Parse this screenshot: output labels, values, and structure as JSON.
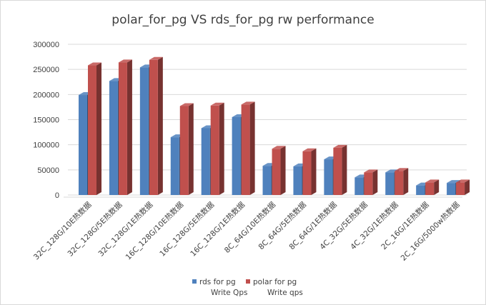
{
  "chart_data": {
    "type": "bar",
    "title": "polar_for_pg VS rds_for_pg rw performance",
    "xlabel": "",
    "ylabel": "",
    "ylim": [
      0,
      300000
    ],
    "yticks": [
      0,
      50000,
      100000,
      150000,
      200000,
      250000,
      300000
    ],
    "grid": true,
    "style": "3d-column",
    "legend_position": "bottom",
    "categories": [
      "32C_128G/10E热数据",
      "32C_128G/5E热数据",
      "32C_128G/1E热数据",
      "16C_128G/10E热数据",
      "16C_128G/5E热数据",
      "16C_128G/1E热数据",
      "8C_64G/10E热数据",
      "8C_64G/5E热数据",
      "8C_64G/1E热数据",
      "4C_32G/5E热数据",
      "4C_32G/1E热数据",
      "2C_16G/1E热数据",
      "2C_16G/5000w热数据"
    ],
    "series": [
      {
        "name": "rds for pg Write Qps",
        "name_lines": [
          "rds for pg",
          "Write Qps"
        ],
        "color": "#4f81bd",
        "values": [
          199000,
          227000,
          254000,
          115000,
          133000,
          155000,
          58000,
          57000,
          71000,
          35000,
          45000,
          19000,
          24000
        ]
      },
      {
        "name": "polar for pg Write qps",
        "name_lines": [
          "polar for pg",
          "Write qps"
        ],
        "color": "#c0504d",
        "values": [
          258000,
          264000,
          269000,
          177000,
          178000,
          180000,
          92000,
          87000,
          94000,
          45000,
          48000,
          25000,
          25000
        ]
      }
    ]
  }
}
